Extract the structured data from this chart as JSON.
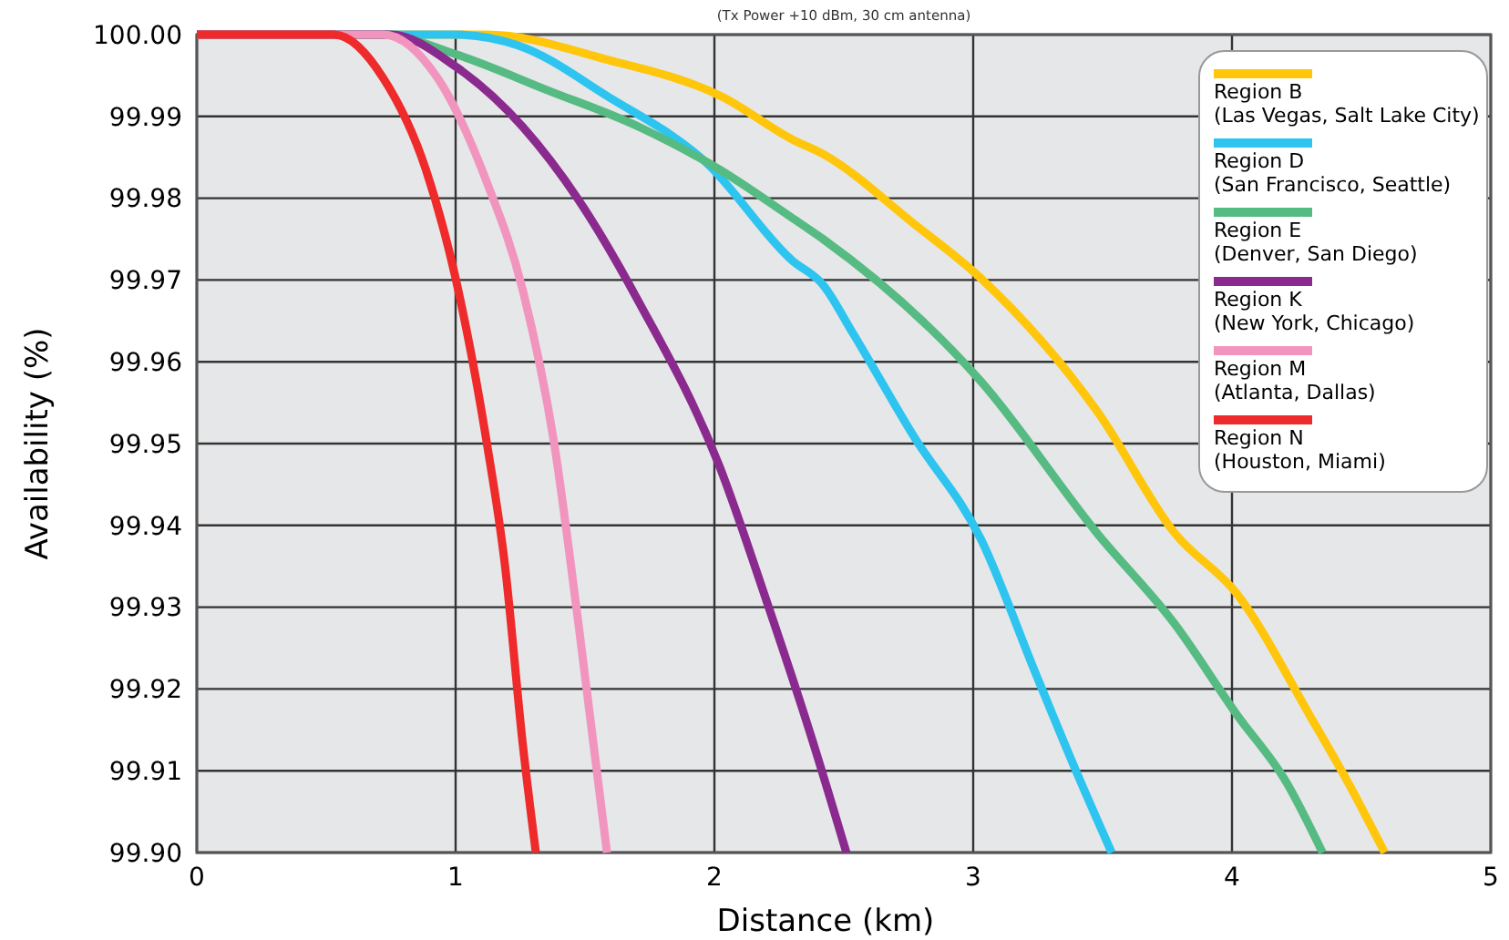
{
  "chart_data": {
    "type": "line",
    "subtitle": "(Tx Power +10 dBm, 30 cm antenna)",
    "xlabel": "Distance (km)",
    "ylabel": "Availability (%)",
    "xlim": [
      0,
      5
    ],
    "xticks": [
      0,
      1,
      2,
      3,
      4,
      5
    ],
    "ylim": [
      99.9,
      100
    ],
    "yticks": [
      {
        "value": 99.9,
        "label": "99.90"
      },
      {
        "value": 99.91,
        "label": "99.91"
      },
      {
        "value": 99.92,
        "label": "99.92"
      },
      {
        "value": 99.93,
        "label": "99.93"
      },
      {
        "value": 99.94,
        "label": "99.94"
      },
      {
        "value": 99.95,
        "label": "99.95"
      },
      {
        "value": 99.96,
        "label": "99.96"
      },
      {
        "value": 99.97,
        "label": "99.97"
      },
      {
        "value": 99.98,
        "label": "99.98"
      },
      {
        "value": 99.99,
        "label": "99.99"
      },
      {
        "value": 100,
        "label": "100.00"
      }
    ],
    "grid": true,
    "legend": "top right",
    "marker": "none",
    "line_style": "solid",
    "series": [
      {
        "name": "Region B\n(Las Vegas, Salt Lake City)",
        "color": "#ffc60b",
        "x": [
          0,
          1.12,
          1.59,
          2.03,
          2.3,
          2.42,
          2.77,
          3.03,
          3.48,
          3.78,
          4.02,
          4.3,
          4.46,
          4.59
        ],
        "values": [
          100,
          100,
          99.9969,
          99.9924,
          99.9872,
          99.9854,
          99.9769,
          99.9702,
          99.9539,
          99.939,
          99.9316,
          99.9168,
          99.9079,
          99.9
        ]
      },
      {
        "name": "Region D\n(San Francisco, Seattle)",
        "color": "#2ec4f0",
        "x": [
          0,
          1,
          1.24,
          1.59,
          1.97,
          2.3,
          2.42,
          2.535,
          2.77,
          3.03,
          3.24,
          3.405,
          3.535
        ],
        "values": [
          100,
          100,
          99.9987,
          99.9924,
          99.9843,
          99.9724,
          99.9694,
          99.9635,
          99.9509,
          99.9383,
          99.922,
          99.9094,
          99.9
        ]
      },
      {
        "name": "Region E\n(Denver, San Diego)",
        "color": "#56bb82",
        "x": [
          0,
          0.72,
          1,
          1.355,
          1.71,
          2.02,
          2.3,
          2.42,
          3.03,
          3.48,
          3.78,
          4.02,
          4.21,
          4.35
        ],
        "values": [
          100,
          100,
          99.9976,
          99.9932,
          99.9887,
          99.9835,
          99.9776,
          99.975,
          99.9576,
          99.939,
          99.9279,
          99.9168,
          99.9086,
          99.9
        ]
      },
      {
        "name": "Region K\n(New York, Chicago)",
        "color": "#8b2a8e",
        "x": [
          0,
          0.75,
          1,
          1.26,
          1.475,
          1.71,
          2.02,
          2.2,
          2.37,
          2.51
        ],
        "values": [
          100,
          100,
          99.9961,
          99.9887,
          99.9798,
          99.9672,
          99.9472,
          99.9309,
          99.9146,
          99.9
        ]
      },
      {
        "name": "Region M\n(Atlanta, Dallas)",
        "color": "#f195bf",
        "x": [
          0,
          0.72,
          0.93,
          1.12,
          1.26,
          1.38,
          1.475,
          1.585
        ],
        "values": [
          100,
          100,
          99.9947,
          99.982,
          99.9687,
          99.9502,
          99.9279,
          99.9
        ]
      },
      {
        "name": "Region N\n(Houston, Miami)",
        "color": "#ee2a2a",
        "x": [
          0,
          0.53,
          0.72,
          0.885,
          1,
          1.12,
          1.19,
          1.26,
          1.31
        ],
        "values": [
          100,
          100,
          99.9947,
          99.9835,
          99.9702,
          99.9502,
          99.9353,
          99.9131,
          99.9
        ]
      }
    ]
  }
}
